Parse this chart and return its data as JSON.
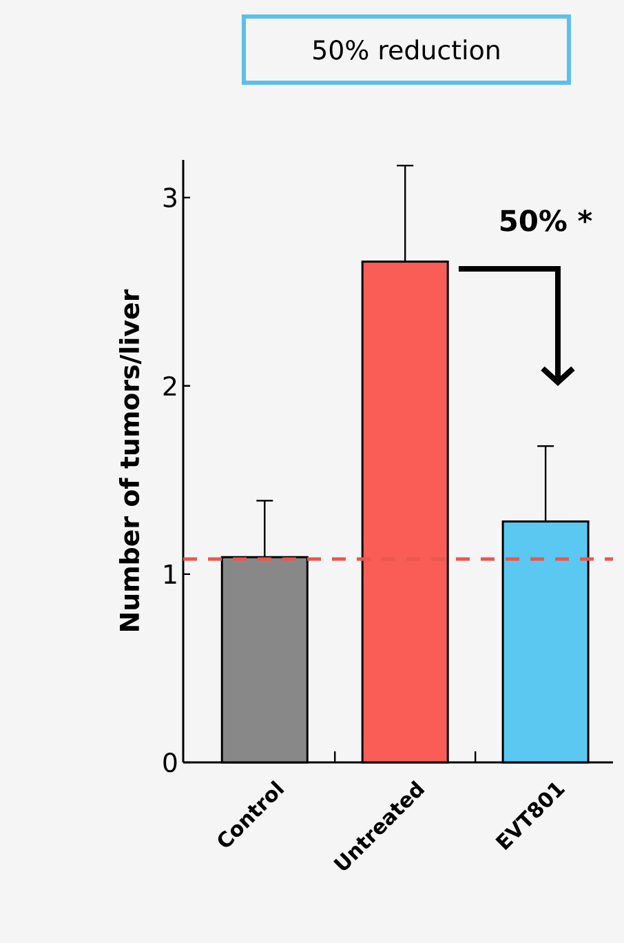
{
  "chart_data": {
    "type": "bar",
    "title": "50% reduction",
    "ylabel": "Number of tumors/liver",
    "categories": [
      "Control",
      "Untreated",
      "EVT801"
    ],
    "values": [
      1.09,
      2.66,
      1.28
    ],
    "colors": [
      "#888888",
      "#f95d55",
      "#5bc8f2"
    ],
    "errors": [
      [
        1.09,
        1.39
      ],
      [
        2.66,
        3.17
      ],
      [
        1.28,
        1.68
      ]
    ],
    "ylim": [
      0,
      3.2
    ],
    "yticks": [
      0,
      1,
      2,
      3
    ],
    "ref_lines": [
      {
        "axis": "y",
        "value": 1.08,
        "color": "#e8584e",
        "line_style": "dashed"
      }
    ],
    "annotations": [
      "50% *"
    ],
    "tick_labels": "y"
  }
}
